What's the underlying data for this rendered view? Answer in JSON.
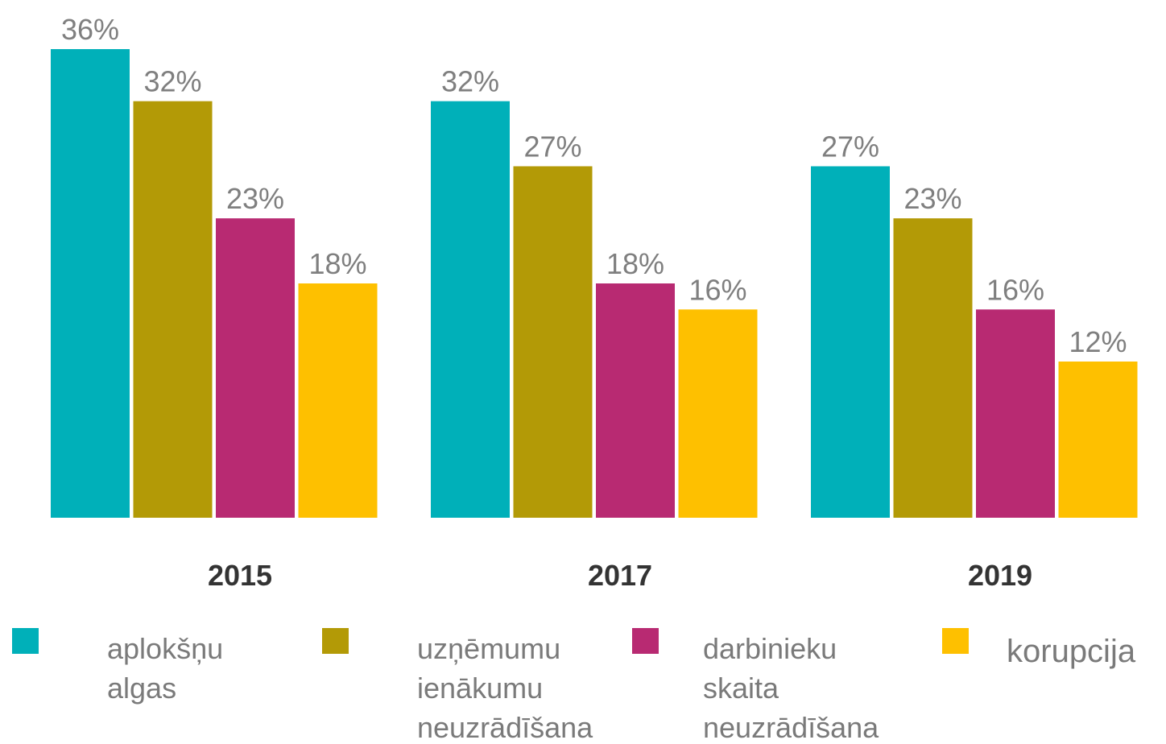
{
  "chart_data": {
    "type": "bar",
    "categories": [
      "2015",
      "2017",
      "2019"
    ],
    "series": [
      {
        "name": "aplokšņu algas",
        "color": "#00b0b9",
        "values": [
          36,
          32,
          27
        ],
        "value_labels": [
          "36%",
          "32%",
          "27%"
        ]
      },
      {
        "name": "uzņēmumu ienākumu neuzrādīšana",
        "color": "#b39a06",
        "values": [
          32,
          27,
          23
        ],
        "value_labels": [
          "32%",
          "27%",
          "23%"
        ]
      },
      {
        "name": "darbinieku skaita neuzrādīšana",
        "color": "#b82a72",
        "values": [
          23,
          18,
          16
        ],
        "value_labels": [
          "23%",
          "18%",
          "16%"
        ]
      },
      {
        "name": "korupcija",
        "color": "#fec000",
        "values": [
          18,
          16,
          12
        ],
        "value_labels": [
          "18%",
          "16%",
          "12%"
        ]
      }
    ],
    "ylim": [
      0,
      36
    ],
    "legend": "bottom"
  }
}
